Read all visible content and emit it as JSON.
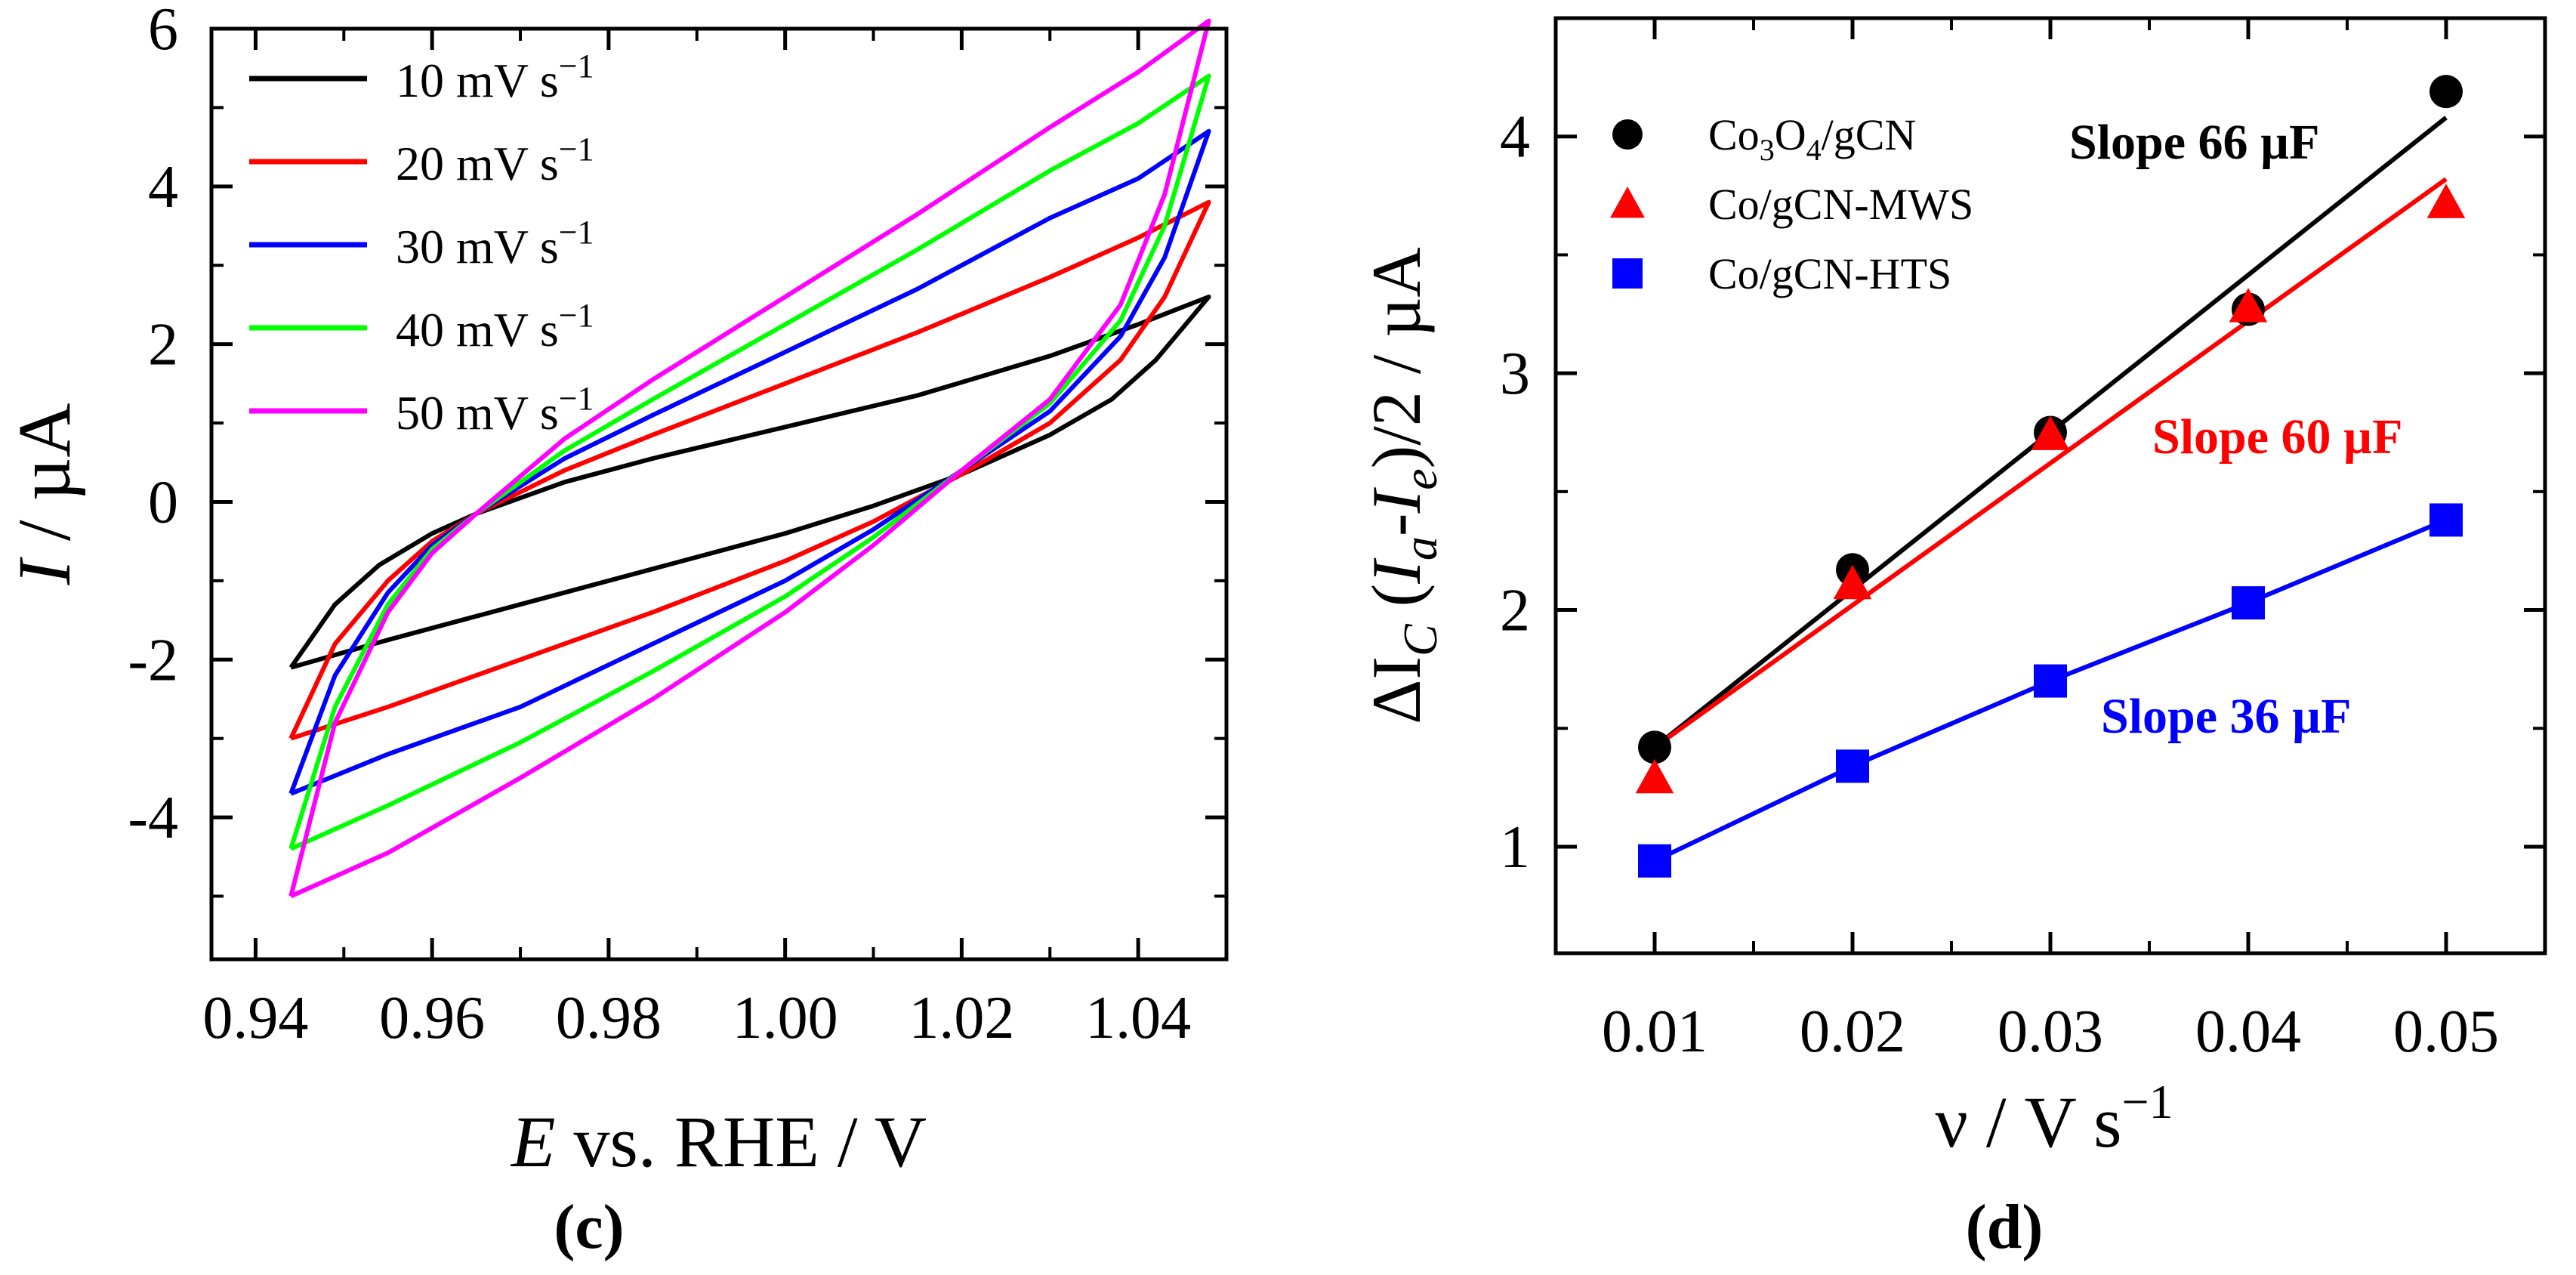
{
  "chart_data": [
    {
      "panel": "c",
      "type": "line",
      "xlabel": "E vs. RHE / V",
      "ylabel": "I / µA",
      "xlim": [
        0.935,
        1.05
      ],
      "ylim": [
        -5.8,
        6.0
      ],
      "x_ticks": [
        "0.94",
        "0.96",
        "0.98",
        "1.00",
        "1.02",
        "1.04"
      ],
      "y_ticks": [
        "6",
        "4",
        "2",
        "0",
        "-2",
        "-4"
      ],
      "legend_position": "top-left",
      "legend_unit": "mV s",
      "legend_exp": "−1",
      "series": [
        {
          "name": "10",
          "color": "#000000",
          "upper": [
            [
              0.944,
              -2.1
            ],
            [
              0.949,
              -1.3
            ],
            [
              0.954,
              -0.8
            ],
            [
              0.96,
              -0.4
            ],
            [
              0.965,
              -0.15
            ],
            [
              0.975,
              0.25
            ],
            [
              0.985,
              0.55
            ],
            [
              1.0,
              0.95
            ],
            [
              1.015,
              1.35
            ],
            [
              1.03,
              1.85
            ],
            [
              1.04,
              2.25
            ],
            [
              1.048,
              2.6
            ]
          ],
          "lower": [
            [
              1.048,
              2.6
            ],
            [
              1.042,
              1.8
            ],
            [
              1.037,
              1.3
            ],
            [
              1.03,
              0.85
            ],
            [
              1.02,
              0.35
            ],
            [
              1.01,
              -0.05
            ],
            [
              1.0,
              -0.4
            ],
            [
              0.985,
              -0.85
            ],
            [
              0.97,
              -1.3
            ],
            [
              0.955,
              -1.75
            ],
            [
              0.944,
              -2.1
            ]
          ]
        },
        {
          "name": "20",
          "color": "#ff0000",
          "upper": [
            [
              0.944,
              -3.0
            ],
            [
              0.949,
              -1.8
            ],
            [
              0.955,
              -1.0
            ],
            [
              0.96,
              -0.5
            ],
            [
              0.965,
              -0.15
            ],
            [
              0.975,
              0.4
            ],
            [
              0.985,
              0.85
            ],
            [
              1.0,
              1.5
            ],
            [
              1.015,
              2.15
            ],
            [
              1.03,
              2.85
            ],
            [
              1.04,
              3.35
            ],
            [
              1.048,
              3.8
            ]
          ],
          "lower": [
            [
              1.048,
              3.8
            ],
            [
              1.043,
              2.6
            ],
            [
              1.038,
              1.8
            ],
            [
              1.03,
              1.0
            ],
            [
              1.02,
              0.35
            ],
            [
              1.01,
              -0.25
            ],
            [
              1.0,
              -0.75
            ],
            [
              0.985,
              -1.4
            ],
            [
              0.97,
              -2.0
            ],
            [
              0.955,
              -2.6
            ],
            [
              0.944,
              -3.0
            ]
          ]
        },
        {
          "name": "30",
          "color": "#0000ff",
          "upper": [
            [
              0.944,
              -3.7
            ],
            [
              0.949,
              -2.2
            ],
            [
              0.955,
              -1.15
            ],
            [
              0.96,
              -0.55
            ],
            [
              0.965,
              -0.15
            ],
            [
              0.975,
              0.55
            ],
            [
              0.985,
              1.1
            ],
            [
              1.0,
              1.9
            ],
            [
              1.015,
              2.7
            ],
            [
              1.03,
              3.6
            ],
            [
              1.04,
              4.1
            ],
            [
              1.048,
              4.7
            ]
          ],
          "lower": [
            [
              1.048,
              4.7
            ],
            [
              1.043,
              3.1
            ],
            [
              1.038,
              2.1
            ],
            [
              1.03,
              1.15
            ],
            [
              1.02,
              0.4
            ],
            [
              1.01,
              -0.35
            ],
            [
              1.0,
              -1.0
            ],
            [
              0.985,
              -1.8
            ],
            [
              0.97,
              -2.6
            ],
            [
              0.955,
              -3.2
            ],
            [
              0.944,
              -3.7
            ]
          ]
        },
        {
          "name": "40",
          "color": "#00ff00",
          "upper": [
            [
              0.944,
              -4.4
            ],
            [
              0.949,
              -2.6
            ],
            [
              0.955,
              -1.3
            ],
            [
              0.96,
              -0.6
            ],
            [
              0.965,
              -0.15
            ],
            [
              0.975,
              0.65
            ],
            [
              0.985,
              1.3
            ],
            [
              1.0,
              2.25
            ],
            [
              1.015,
              3.2
            ],
            [
              1.03,
              4.2
            ],
            [
              1.04,
              4.8
            ],
            [
              1.048,
              5.4
            ]
          ],
          "lower": [
            [
              1.048,
              5.4
            ],
            [
              1.043,
              3.5
            ],
            [
              1.038,
              2.3
            ],
            [
              1.03,
              1.25
            ],
            [
              1.02,
              0.4
            ],
            [
              1.01,
              -0.45
            ],
            [
              1.0,
              -1.2
            ],
            [
              0.985,
              -2.15
            ],
            [
              0.97,
              -3.05
            ],
            [
              0.955,
              -3.85
            ],
            [
              0.944,
              -4.4
            ]
          ]
        },
        {
          "name": "50",
          "color": "#ff00ff",
          "upper": [
            [
              0.944,
              -5.0
            ],
            [
              0.949,
              -2.8
            ],
            [
              0.955,
              -1.4
            ],
            [
              0.96,
              -0.65
            ],
            [
              0.965,
              -0.15
            ],
            [
              0.975,
              0.8
            ],
            [
              0.985,
              1.55
            ],
            [
              1.0,
              2.6
            ],
            [
              1.015,
              3.65
            ],
            [
              1.03,
              4.75
            ],
            [
              1.04,
              5.45
            ],
            [
              1.048,
              6.1
            ]
          ],
          "lower": [
            [
              1.048,
              6.1
            ],
            [
              1.043,
              3.9
            ],
            [
              1.038,
              2.5
            ],
            [
              1.03,
              1.3
            ],
            [
              1.02,
              0.4
            ],
            [
              1.01,
              -0.55
            ],
            [
              1.0,
              -1.4
            ],
            [
              0.985,
              -2.5
            ],
            [
              0.97,
              -3.5
            ],
            [
              0.955,
              -4.45
            ],
            [
              0.944,
              -5.0
            ]
          ]
        }
      ]
    },
    {
      "panel": "d",
      "type": "scatter",
      "xlabel": "ν / V s",
      "xlabel_exp": "−1",
      "ylabel": "ΔI (I-I)/2 / µA",
      "xlim": [
        0.005,
        0.055
      ],
      "ylim": [
        0.55,
        4.5
      ],
      "x_ticks": [
        "0.01",
        "0.02",
        "0.03",
        "0.04",
        "0.05"
      ],
      "y_ticks": [
        "4",
        "3",
        "2",
        "1"
      ],
      "legend_position": "top-left",
      "x": [
        0.01,
        0.02,
        0.03,
        0.04,
        0.05
      ],
      "series": [
        {
          "name": "Co3O4/gCN",
          "color": "#000000",
          "marker": "circle",
          "values": [
            1.42,
            2.17,
            2.75,
            3.27,
            4.19
          ],
          "fit": [
            [
              0.01,
              1.42
            ],
            [
              0.05,
              4.08
            ]
          ],
          "annotation": "Slope 66 µF"
        },
        {
          "name": "Co/gCN-MWS",
          "color": "#ff0000",
          "marker": "triangle",
          "values": [
            1.29,
            2.11,
            2.74,
            3.28,
            3.72
          ],
          "fit": [
            [
              0.01,
              1.42
            ],
            [
              0.05,
              3.82
            ]
          ],
          "annotation": "Slope 60 µF"
        },
        {
          "name": "Co/gCN-HTS",
          "color": "#0000ff",
          "marker": "square",
          "values": [
            0.94,
            1.34,
            1.7,
            2.03,
            2.38
          ],
          "fit": [
            [
              0.01,
              0.94
            ],
            [
              0.02,
              1.34
            ],
            [
              0.03,
              1.7
            ],
            [
              0.04,
              2.03
            ],
            [
              0.05,
              2.38
            ]
          ],
          "annotation": "Slope 36 µF"
        }
      ]
    }
  ],
  "panel_labels": {
    "c": "(c)",
    "d": "(d)"
  }
}
